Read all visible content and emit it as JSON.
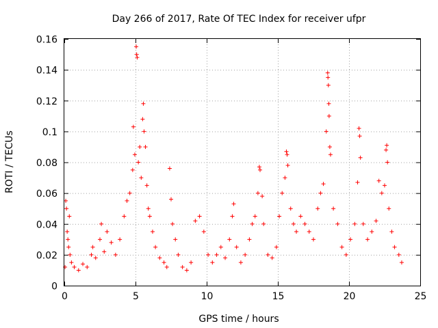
{
  "chart_data": {
    "type": "scatter",
    "title": "Day 266 of 2017, Rate Of TEC Index for receiver ufpr",
    "xlabel": "GPS time / hours",
    "ylabel": "ROTI / TECUs",
    "xlim": [
      0,
      25
    ],
    "ylim": [
      0,
      0.16
    ],
    "x_ticks": [
      0,
      5,
      10,
      15,
      20,
      25
    ],
    "x_tick_labels": [
      "0",
      "5",
      "10",
      "15",
      "20",
      "25"
    ],
    "y_ticks": [
      0,
      0.02,
      0.04,
      0.06,
      0.08,
      0.1,
      0.12,
      0.14,
      0.16
    ],
    "y_tick_labels": [
      "0",
      "0.02",
      "0.04",
      "0.06",
      "0.08",
      "0.1",
      "0.12",
      "0.14",
      "0.16"
    ],
    "grid": true,
    "marker": "+",
    "marker_color": "#ff0000",
    "series": [
      {
        "points": [
          [
            0.05,
            0.012
          ],
          [
            0.1,
            0.055
          ],
          [
            0.15,
            0.05
          ],
          [
            0.2,
            0.035
          ],
          [
            0.25,
            0.03
          ],
          [
            0.3,
            0.025
          ],
          [
            0.35,
            0.045
          ],
          [
            0.4,
            0.02
          ],
          [
            0.5,
            0.015
          ],
          [
            0.7,
            0.012
          ],
          [
            1.0,
            0.01
          ],
          [
            1.3,
            0.014
          ],
          [
            1.6,
            0.012
          ],
          [
            1.9,
            0.02
          ],
          [
            2.0,
            0.025
          ],
          [
            2.2,
            0.018
          ],
          [
            2.5,
            0.03
          ],
          [
            2.6,
            0.04
          ],
          [
            2.8,
            0.022
          ],
          [
            3.0,
            0.035
          ],
          [
            3.3,
            0.028
          ],
          [
            3.6,
            0.02
          ],
          [
            3.9,
            0.03
          ],
          [
            4.2,
            0.045
          ],
          [
            4.4,
            0.055
          ],
          [
            4.6,
            0.06
          ],
          [
            4.8,
            0.075
          ],
          [
            4.85,
            0.103
          ],
          [
            4.95,
            0.085
          ],
          [
            5.05,
            0.155
          ],
          [
            5.08,
            0.15
          ],
          [
            5.12,
            0.148
          ],
          [
            5.2,
            0.08
          ],
          [
            5.3,
            0.09
          ],
          [
            5.4,
            0.07
          ],
          [
            5.5,
            0.108
          ],
          [
            5.55,
            0.118
          ],
          [
            5.6,
            0.1
          ],
          [
            5.7,
            0.09
          ],
          [
            5.8,
            0.065
          ],
          [
            5.9,
            0.05
          ],
          [
            6.0,
            0.045
          ],
          [
            6.2,
            0.035
          ],
          [
            6.4,
            0.025
          ],
          [
            6.7,
            0.018
          ],
          [
            7.0,
            0.015
          ],
          [
            7.2,
            0.012
          ],
          [
            7.4,
            0.076
          ],
          [
            7.5,
            0.056
          ],
          [
            7.6,
            0.04
          ],
          [
            7.8,
            0.03
          ],
          [
            8.0,
            0.02
          ],
          [
            8.3,
            0.012
          ],
          [
            8.6,
            0.01
          ],
          [
            8.9,
            0.015
          ],
          [
            9.2,
            0.042
          ],
          [
            9.5,
            0.045
          ],
          [
            9.8,
            0.035
          ],
          [
            10.1,
            0.02
          ],
          [
            10.4,
            0.015
          ],
          [
            10.7,
            0.02
          ],
          [
            11.0,
            0.025
          ],
          [
            11.3,
            0.018
          ],
          [
            11.6,
            0.03
          ],
          [
            11.8,
            0.045
          ],
          [
            11.9,
            0.053
          ],
          [
            12.1,
            0.025
          ],
          [
            12.4,
            0.015
          ],
          [
            12.7,
            0.02
          ],
          [
            13.0,
            0.03
          ],
          [
            13.2,
            0.04
          ],
          [
            13.4,
            0.045
          ],
          [
            13.6,
            0.06
          ],
          [
            13.7,
            0.077
          ],
          [
            13.75,
            0.075
          ],
          [
            13.9,
            0.058
          ],
          [
            14.0,
            0.04
          ],
          [
            14.3,
            0.02
          ],
          [
            14.6,
            0.018
          ],
          [
            14.9,
            0.025
          ],
          [
            15.1,
            0.045
          ],
          [
            15.3,
            0.06
          ],
          [
            15.5,
            0.07
          ],
          [
            15.6,
            0.087
          ],
          [
            15.65,
            0.085
          ],
          [
            15.7,
            0.078
          ],
          [
            15.9,
            0.05
          ],
          [
            16.1,
            0.04
          ],
          [
            16.3,
            0.035
          ],
          [
            16.6,
            0.045
          ],
          [
            16.9,
            0.04
          ],
          [
            17.2,
            0.035
          ],
          [
            17.5,
            0.03
          ],
          [
            17.8,
            0.05
          ],
          [
            18.0,
            0.06
          ],
          [
            18.2,
            0.066
          ],
          [
            18.4,
            0.1
          ],
          [
            18.5,
            0.138
          ],
          [
            18.52,
            0.135
          ],
          [
            18.55,
            0.13
          ],
          [
            18.58,
            0.118
          ],
          [
            18.6,
            0.11
          ],
          [
            18.65,
            0.09
          ],
          [
            18.7,
            0.085
          ],
          [
            18.9,
            0.05
          ],
          [
            19.2,
            0.04
          ],
          [
            19.5,
            0.025
          ],
          [
            19.8,
            0.02
          ],
          [
            20.1,
            0.03
          ],
          [
            20.4,
            0.04
          ],
          [
            20.6,
            0.067
          ],
          [
            20.7,
            0.102
          ],
          [
            20.75,
            0.097
          ],
          [
            20.8,
            0.083
          ],
          [
            21.0,
            0.04
          ],
          [
            21.3,
            0.03
          ],
          [
            21.6,
            0.035
          ],
          [
            21.9,
            0.042
          ],
          [
            22.1,
            0.068
          ],
          [
            22.3,
            0.06
          ],
          [
            22.5,
            0.065
          ],
          [
            22.6,
            0.088
          ],
          [
            22.65,
            0.091
          ],
          [
            22.7,
            0.08
          ],
          [
            22.8,
            0.05
          ],
          [
            23.0,
            0.035
          ],
          [
            23.2,
            0.025
          ],
          [
            23.5,
            0.02
          ],
          [
            23.7,
            0.015
          ]
        ]
      }
    ]
  }
}
